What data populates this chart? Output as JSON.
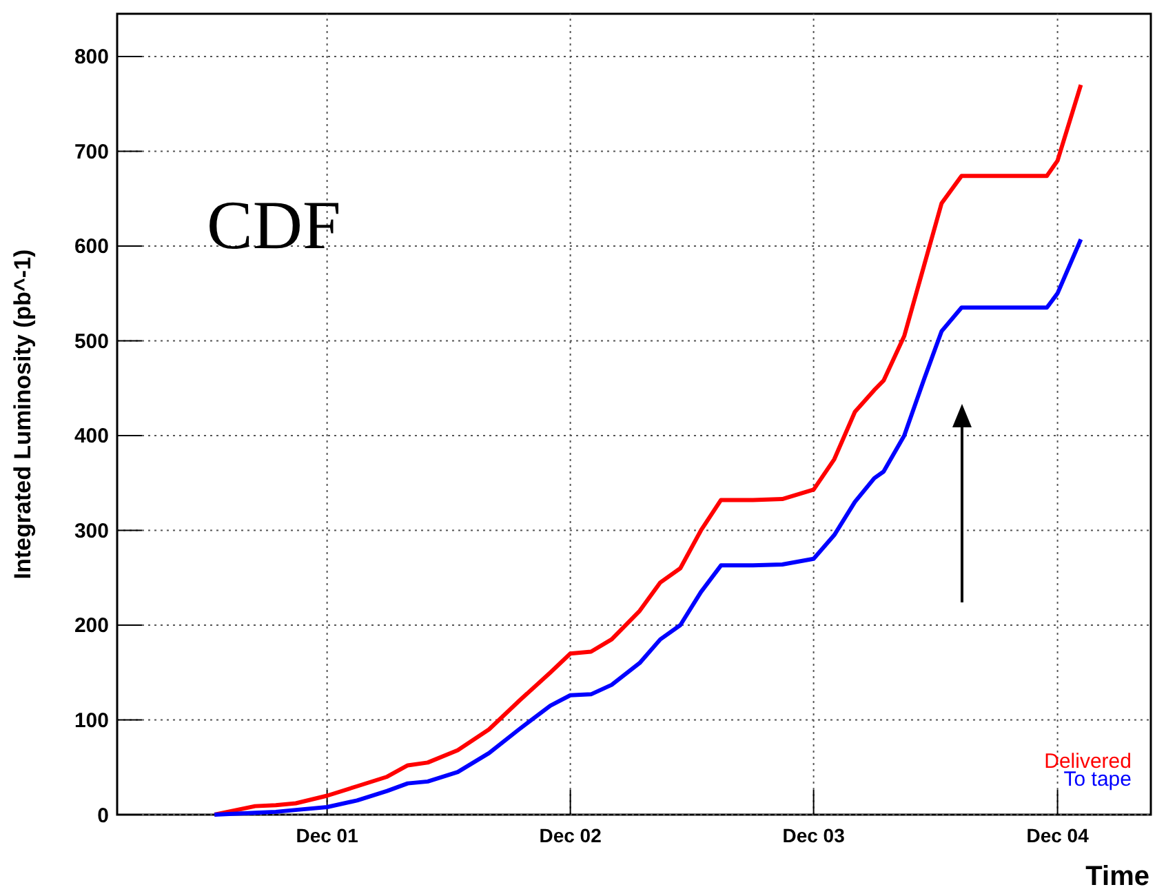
{
  "chart_data": {
    "type": "line",
    "ylabel": "Integrated Luminosity (pb^-1)",
    "xlabel": "Time",
    "annotations": [
      "CDF"
    ],
    "x": [
      "2001-06-15",
      "2001-08-15",
      "2001-09-15",
      "2001-10-15",
      "2001-12-01",
      "2002-01-15",
      "2002-03-01",
      "2002-04-01",
      "2002-05-01",
      "2002-06-15",
      "2002-08-01",
      "2002-09-15",
      "2002-11-01",
      "2002-12-01",
      "2003-01-01",
      "2003-02-01",
      "2003-03-15",
      "2003-04-15",
      "2003-05-15",
      "2003-06-15",
      "2003-07-15",
      "2003-09-01",
      "2003-10-15",
      "2003-12-01",
      "2004-01-01",
      "2004-02-01",
      "2004-03-01",
      "2004-03-15",
      "2004-04-15",
      "2004-05-15",
      "2004-06-10",
      "2004-07-10",
      "2004-11-15",
      "2004-12-01",
      "2005-01-05"
    ],
    "series": [
      {
        "name": "Delivered",
        "color": "#ff0000",
        "values": [
          0,
          9,
          10,
          12,
          20,
          30,
          40,
          52,
          55,
          68,
          90,
          120,
          150,
          170,
          172,
          185,
          215,
          245,
          260,
          300,
          332,
          332,
          333,
          343,
          375,
          425,
          448,
          458,
          505,
          580,
          645,
          674,
          674,
          690,
          770
        ]
      },
      {
        "name": "To tape",
        "color": "#0000ff",
        "values": [
          0,
          2,
          3,
          5,
          8,
          15,
          25,
          33,
          35,
          45,
          65,
          90,
          115,
          126,
          127,
          137,
          160,
          185,
          200,
          235,
          263,
          263,
          264,
          270,
          295,
          330,
          355,
          362,
          400,
          460,
          510,
          535,
          535,
          550,
          607
        ]
      }
    ],
    "xlim": [
      "2001-01-20",
      "2005-04-20"
    ],
    "xticks": [
      {
        "value": "2001-12-01",
        "label": "Dec 01"
      },
      {
        "value": "2002-12-01",
        "label": "Dec 02"
      },
      {
        "value": "2003-12-01",
        "label": "Dec 03"
      },
      {
        "value": "2004-12-01",
        "label": "Dec 04"
      }
    ],
    "ylim": [
      0,
      845
    ],
    "yticks": [
      0,
      100,
      200,
      300,
      400,
      500,
      600,
      700,
      800
    ],
    "grid": true,
    "legend": "bottom right",
    "marker": "none",
    "line_style": "solid"
  }
}
